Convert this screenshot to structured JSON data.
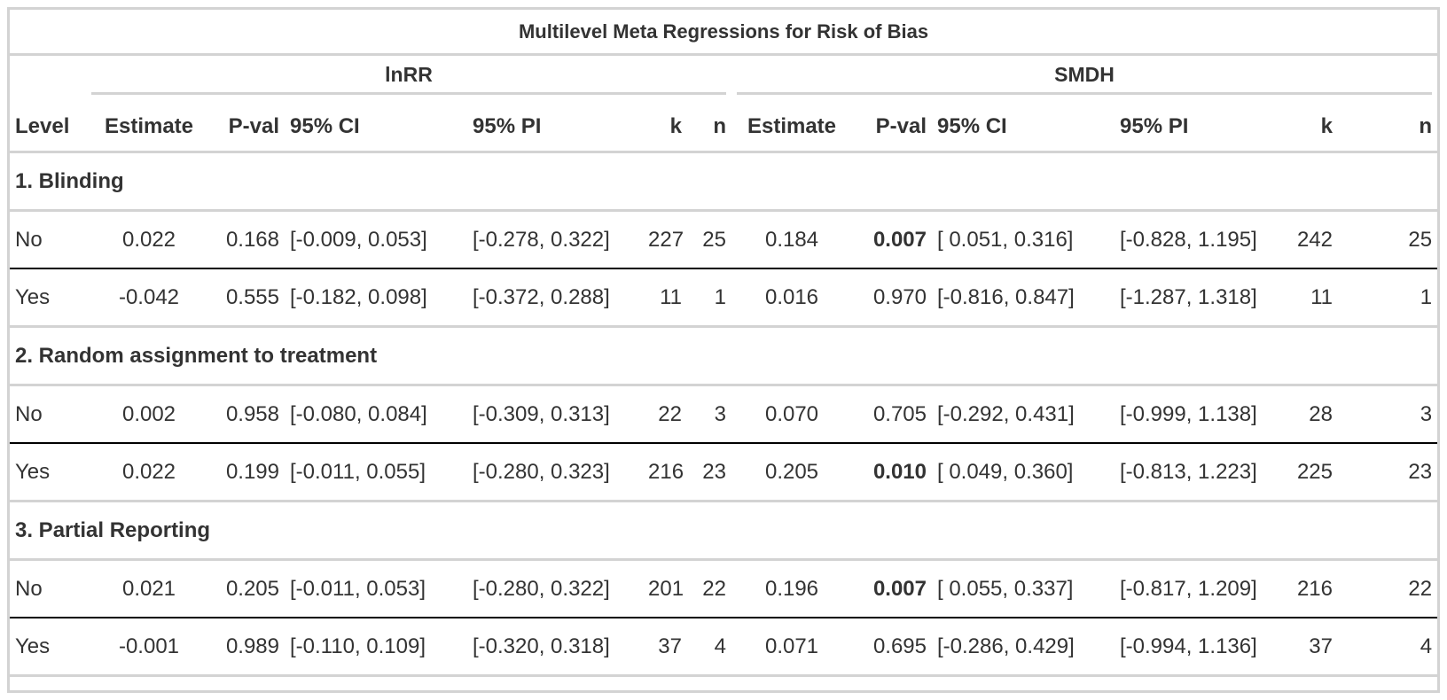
{
  "title": "Multilevel Meta Regressions for Risk of Bias",
  "spanners": [
    "lnRR",
    "SMDH"
  ],
  "columns": [
    "Level",
    "Estimate",
    "P-val",
    "95% CI",
    "95% PI",
    "k",
    "n",
    "Estimate",
    "P-val",
    "95% CI",
    "95% PI",
    "k",
    "n"
  ],
  "groups": [
    {
      "label": "1. Blinding",
      "rows": [
        {
          "level": "No",
          "lnrr": {
            "estimate": "0.022",
            "pval": "0.168",
            "ci": "[-0.009, 0.053]",
            "pi": "[-0.278, 0.322]",
            "k": "227",
            "n": "25"
          },
          "smdh": {
            "estimate": "0.184",
            "pval": "0.007",
            "pval_bold": true,
            "ci": "[ 0.051, 0.316]",
            "pi": "[-0.828, 1.195]",
            "k": "242",
            "n": "25"
          }
        },
        {
          "level": "Yes",
          "lnrr": {
            "estimate": "-0.042",
            "pval": "0.555",
            "ci": "[-0.182, 0.098]",
            "pi": "[-0.372, 0.288]",
            "k": "11",
            "n": "1"
          },
          "smdh": {
            "estimate": "0.016",
            "pval": "0.970",
            "pval_bold": false,
            "ci": "[-0.816, 0.847]",
            "pi": "[-1.287, 1.318]",
            "k": "11",
            "n": "1"
          }
        }
      ]
    },
    {
      "label": "2. Random assignment to treatment",
      "rows": [
        {
          "level": "No",
          "lnrr": {
            "estimate": "0.002",
            "pval": "0.958",
            "ci": "[-0.080, 0.084]",
            "pi": "[-0.309, 0.313]",
            "k": "22",
            "n": "3"
          },
          "smdh": {
            "estimate": "0.070",
            "pval": "0.705",
            "pval_bold": false,
            "ci": "[-0.292, 0.431]",
            "pi": "[-0.999, 1.138]",
            "k": "28",
            "n": "3"
          }
        },
        {
          "level": "Yes",
          "lnrr": {
            "estimate": "0.022",
            "pval": "0.199",
            "ci": "[-0.011, 0.055]",
            "pi": "[-0.280, 0.323]",
            "k": "216",
            "n": "23"
          },
          "smdh": {
            "estimate": "0.205",
            "pval": "0.010",
            "pval_bold": true,
            "ci": "[ 0.049, 0.360]",
            "pi": "[-0.813, 1.223]",
            "k": "225",
            "n": "23"
          }
        }
      ]
    },
    {
      "label": "3. Partial Reporting",
      "rows": [
        {
          "level": "No",
          "lnrr": {
            "estimate": "0.021",
            "pval": "0.205",
            "ci": "[-0.011, 0.053]",
            "pi": "[-0.280, 0.322]",
            "k": "201",
            "n": "22"
          },
          "smdh": {
            "estimate": "0.196",
            "pval": "0.007",
            "pval_bold": true,
            "ci": "[ 0.055, 0.337]",
            "pi": "[-0.817, 1.209]",
            "k": "216",
            "n": "22"
          }
        },
        {
          "level": "Yes",
          "lnrr": {
            "estimate": "-0.001",
            "pval": "0.989",
            "ci": "[-0.110, 0.109]",
            "pi": "[-0.320, 0.318]",
            "k": "37",
            "n": "4"
          },
          "smdh": {
            "estimate": "0.071",
            "pval": "0.695",
            "pval_bold": false,
            "ci": "[-0.286, 0.429]",
            "pi": "[-0.994, 1.136]",
            "k": "37",
            "n": "4"
          }
        }
      ]
    }
  ]
}
